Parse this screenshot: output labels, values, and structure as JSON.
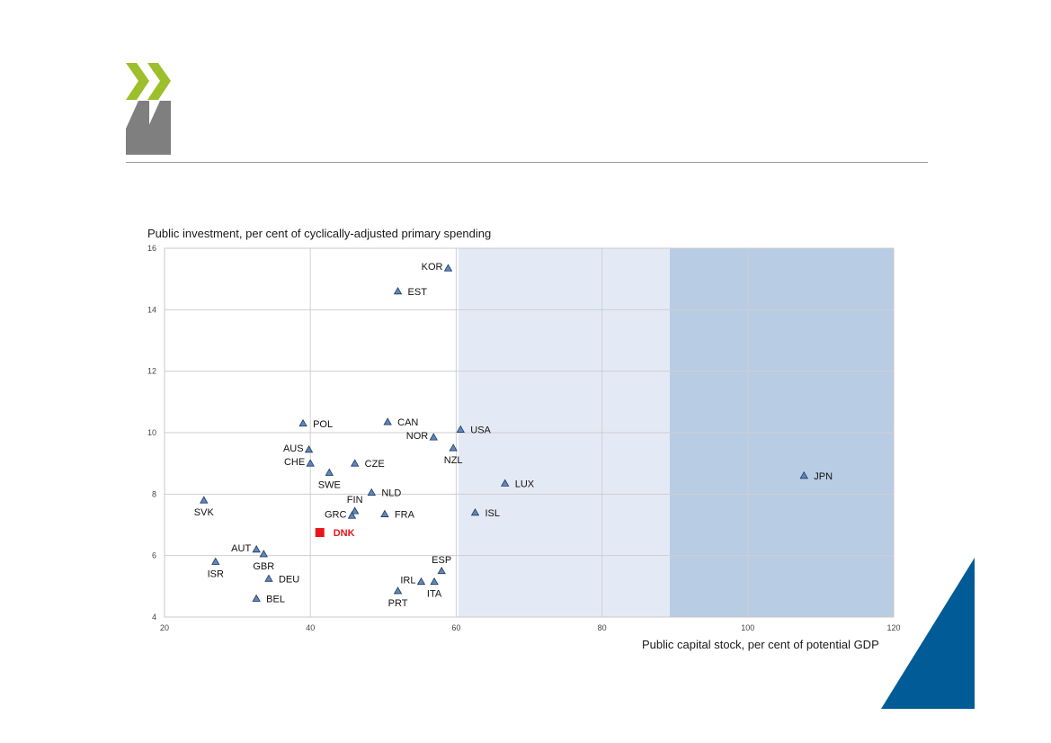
{
  "colors": {
    "logo_green": "#9cbf2b",
    "logo_grey": "#7f7f7f",
    "band_light": "#e4eaf5",
    "band_dark": "#b8cce4",
    "marker": "#5f86be",
    "marker_edge": "#1f3a5f",
    "highlight": "#e8141b",
    "corner": "#005b96"
  },
  "chart_data": {
    "type": "scatter",
    "ylabel": "Public investment, per cent of cyclically-adjusted primary spending",
    "xlabel": "Public capital stock, per cent of potential GDP",
    "xlim": [
      20,
      120
    ],
    "ylim": [
      4,
      16
    ],
    "xticks": [
      "20",
      "40",
      "60",
      "80",
      "100",
      "120"
    ],
    "yticks": [
      "4",
      "6",
      "8",
      "10",
      "12",
      "14",
      "16"
    ],
    "grid": true,
    "shaded_bands": [
      {
        "x_from": 60.3,
        "x_to": 89.3,
        "shade": "light"
      },
      {
        "x_from": 89.3,
        "x_to": 120,
        "shade": "dark"
      }
    ],
    "points": [
      {
        "label": "KOR",
        "x": 58.9,
        "y": 15.35,
        "label_pos": "left"
      },
      {
        "label": "EST",
        "x": 52.0,
        "y": 14.6,
        "label_pos": "right"
      },
      {
        "label": "POL",
        "x": 39.0,
        "y": 10.3,
        "label_pos": "right"
      },
      {
        "label": "CAN",
        "x": 50.6,
        "y": 10.35,
        "label_pos": "right"
      },
      {
        "label": "USA",
        "x": 60.6,
        "y": 10.1,
        "label_pos": "right"
      },
      {
        "label": "NOR",
        "x": 56.9,
        "y": 9.85,
        "label_pos": "left"
      },
      {
        "label": "AUS",
        "x": 39.8,
        "y": 9.45,
        "label_pos": "left"
      },
      {
        "label": "NZL",
        "x": 59.6,
        "y": 9.5,
        "label_pos": "below"
      },
      {
        "label": "CHE",
        "x": 40.0,
        "y": 9.0,
        "label_pos": "left"
      },
      {
        "label": "CZE",
        "x": 46.1,
        "y": 9.0,
        "label_pos": "right"
      },
      {
        "label": "SWE",
        "x": 42.6,
        "y": 8.7,
        "label_pos": "below"
      },
      {
        "label": "JPN",
        "x": 107.7,
        "y": 8.6,
        "label_pos": "right"
      },
      {
        "label": "LUX",
        "x": 66.7,
        "y": 8.35,
        "label_pos": "right"
      },
      {
        "label": "NLD",
        "x": 48.4,
        "y": 8.05,
        "label_pos": "right"
      },
      {
        "label": "SVK",
        "x": 25.4,
        "y": 7.8,
        "label_pos": "below"
      },
      {
        "label": "FIN",
        "x": 46.1,
        "y": 7.45,
        "label_pos": "above"
      },
      {
        "label": "GRC",
        "x": 45.7,
        "y": 7.3,
        "label_pos": "left"
      },
      {
        "label": "FRA",
        "x": 50.2,
        "y": 7.35,
        "label_pos": "right"
      },
      {
        "label": "ISL",
        "x": 62.6,
        "y": 7.4,
        "label_pos": "right"
      },
      {
        "label": "AUT",
        "x": 32.6,
        "y": 6.2,
        "label_pos": "left"
      },
      {
        "label": "GBR",
        "x": 33.6,
        "y": 6.05,
        "label_pos": "below"
      },
      {
        "label": "ISR",
        "x": 27.0,
        "y": 5.8,
        "label_pos": "below"
      },
      {
        "label": "ESP",
        "x": 58.0,
        "y": 5.5,
        "label_pos": "above"
      },
      {
        "label": "DEU",
        "x": 34.3,
        "y": 5.25,
        "label_pos": "right"
      },
      {
        "label": "IRL",
        "x": 55.2,
        "y": 5.15,
        "label_pos": "left"
      },
      {
        "label": "ITA",
        "x": 57.0,
        "y": 5.15,
        "label_pos": "below"
      },
      {
        "label": "PRT",
        "x": 52.0,
        "y": 4.85,
        "label_pos": "below"
      },
      {
        "label": "BEL",
        "x": 32.6,
        "y": 4.6,
        "label_pos": "right"
      }
    ],
    "highlight": {
      "label": "DNK",
      "x": 41.3,
      "y": 6.75
    }
  }
}
